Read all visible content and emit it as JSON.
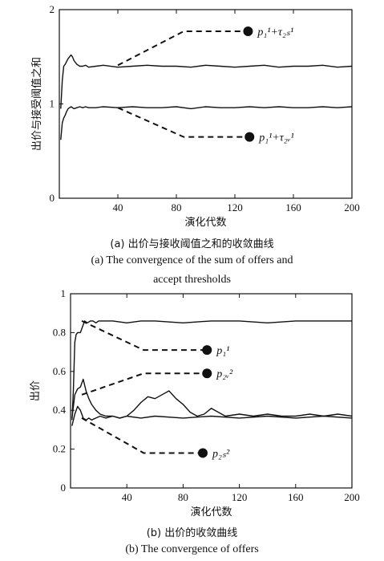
{
  "chart_data": [
    {
      "type": "line",
      "xlabel": "演化代数",
      "ylabel": "出价与接受阈值之和",
      "xlim": [
        0,
        200
      ],
      "ylim": [
        0,
        2
      ],
      "xticks": [
        "40",
        "80",
        "120",
        "160",
        "200"
      ],
      "yticks": [
        "0",
        "1",
        "2"
      ],
      "annotations": [
        {
          "label": "p₁¹+τ₂ₛ¹",
          "point": [
            85,
            1.77
          ],
          "marker_x": 129,
          "marker_y": 1.77
        },
        {
          "label": "p₁¹+τ₂ᵥ¹",
          "point": [
            85,
            0.65
          ],
          "marker_x": 130,
          "marker_y": 0.65
        }
      ],
      "series": [
        {
          "x": [
            1,
            2,
            3,
            4,
            5,
            6,
            7,
            8,
            9,
            10,
            12,
            14,
            16,
            18,
            20,
            25,
            30,
            40,
            50,
            60,
            70,
            80,
            90,
            100,
            110,
            120,
            130,
            140,
            150,
            160,
            170,
            180,
            190,
            200
          ],
          "y": [
            0.95,
            1.25,
            1.4,
            1.42,
            1.45,
            1.48,
            1.5,
            1.52,
            1.5,
            1.46,
            1.42,
            1.4,
            1.4,
            1.41,
            1.39,
            1.4,
            1.41,
            1.39,
            1.4,
            1.41,
            1.4,
            1.4,
            1.39,
            1.41,
            1.4,
            1.39,
            1.4,
            1.41,
            1.39,
            1.4,
            1.4,
            1.41,
            1.39,
            1.4
          ]
        },
        {
          "x": [
            1,
            2,
            3,
            4,
            5,
            6,
            7,
            8,
            10,
            12,
            14,
            16,
            18,
            20,
            25,
            30,
            40,
            50,
            60,
            70,
            80,
            90,
            100,
            110,
            120,
            130,
            140,
            150,
            160,
            170,
            180,
            190,
            200
          ],
          "y": [
            0.62,
            0.8,
            0.85,
            0.88,
            0.92,
            0.95,
            0.96,
            0.97,
            0.95,
            0.96,
            0.97,
            0.96,
            0.97,
            0.96,
            0.96,
            0.97,
            0.96,
            0.97,
            0.96,
            0.96,
            0.97,
            0.95,
            0.97,
            0.96,
            0.96,
            0.97,
            0.96,
            0.97,
            0.96,
            0.96,
            0.97,
            0.96,
            0.97
          ]
        }
      ]
    },
    {
      "type": "line",
      "xlabel": "演化代数",
      "ylabel": "出价",
      "xlim": [
        0,
        200
      ],
      "ylim": [
        0,
        1
      ],
      "xticks": [
        "40",
        "80",
        "120",
        "160",
        "200"
      ],
      "yticks": [
        "0",
        "0.2",
        "0.4",
        "0.6",
        "0.8",
        "1"
      ],
      "annotations": [
        {
          "label": "p₁¹",
          "point": [
            52,
            0.71
          ],
          "marker_x": 97,
          "marker_y": 0.71
        },
        {
          "label": "p₂ᵥ²",
          "point": [
            52,
            0.59
          ],
          "marker_x": 97,
          "marker_y": 0.59
        },
        {
          "label": "p₂ₛ²",
          "point": [
            52,
            0.18
          ],
          "marker_x": 94,
          "marker_y": 0.18
        }
      ],
      "series": [
        {
          "x": [
            1,
            2,
            3,
            4,
            5,
            6,
            7,
            8,
            9,
            10,
            12,
            14,
            16,
            18,
            20,
            30,
            40,
            50,
            60,
            80,
            100,
            120,
            140,
            160,
            180,
            200
          ],
          "y": [
            0.35,
            0.5,
            0.75,
            0.79,
            0.8,
            0.8,
            0.8,
            0.82,
            0.84,
            0.86,
            0.85,
            0.86,
            0.86,
            0.85,
            0.86,
            0.86,
            0.85,
            0.86,
            0.86,
            0.85,
            0.86,
            0.86,
            0.85,
            0.86,
            0.86,
            0.86
          ]
        },
        {
          "x": [
            1,
            3,
            5,
            7,
            9,
            11,
            13,
            15,
            18,
            21,
            25,
            30,
            35,
            40,
            45,
            50,
            55,
            60,
            65,
            70,
            75,
            80,
            85,
            90,
            95,
            100,
            110,
            120,
            130,
            140,
            150,
            160,
            170,
            180,
            190,
            200
          ],
          "y": [
            0.36,
            0.48,
            0.51,
            0.52,
            0.56,
            0.5,
            0.46,
            0.43,
            0.4,
            0.38,
            0.37,
            0.37,
            0.36,
            0.37,
            0.4,
            0.44,
            0.47,
            0.46,
            0.48,
            0.5,
            0.46,
            0.43,
            0.39,
            0.37,
            0.38,
            0.41,
            0.37,
            0.38,
            0.37,
            0.38,
            0.37,
            0.37,
            0.38,
            0.37,
            0.38,
            0.37
          ]
        },
        {
          "x": [
            1,
            3,
            5,
            7,
            9,
            11,
            13,
            15,
            18,
            21,
            25,
            30,
            35,
            40,
            50,
            60,
            80,
            100,
            120,
            140,
            160,
            180,
            200
          ],
          "y": [
            0.32,
            0.38,
            0.42,
            0.4,
            0.36,
            0.35,
            0.36,
            0.35,
            0.36,
            0.37,
            0.36,
            0.37,
            0.36,
            0.37,
            0.36,
            0.37,
            0.36,
            0.37,
            0.36,
            0.37,
            0.36,
            0.37,
            0.36
          ]
        }
      ]
    }
  ],
  "captions": {
    "a_cn": "(a) 出价与接收阈值之和的收敛曲线",
    "a_en_1": "(a) The convergence of the sum of offers and",
    "a_en_2": "accept thresholds",
    "b_cn": "(b) 出价的收敛曲线",
    "b_en": "(b) The convergence of offers"
  }
}
